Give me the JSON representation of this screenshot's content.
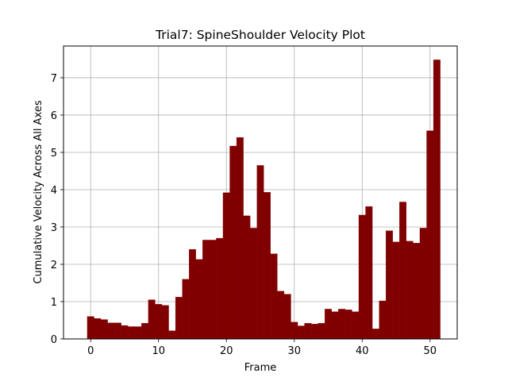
{
  "chart_data": {
    "type": "bar",
    "title": "Trial7: SpineShoulder Velocity Plot",
    "xlabel": "Frame",
    "ylabel": "Cumulative Velocity Across All Axes",
    "xlim": [
      -4,
      54
    ],
    "ylim": [
      0,
      7.85
    ],
    "xticks": [
      0,
      10,
      20,
      30,
      40,
      50
    ],
    "yticks": [
      0,
      1,
      2,
      3,
      4,
      5,
      6,
      7
    ],
    "grid": true,
    "bar_color": "#800000",
    "x": [
      0,
      1,
      2,
      3,
      4,
      5,
      6,
      7,
      8,
      9,
      10,
      11,
      12,
      13,
      14,
      15,
      16,
      17,
      18,
      19,
      20,
      21,
      22,
      23,
      24,
      25,
      26,
      27,
      28,
      29,
      30,
      31,
      32,
      33,
      34,
      35,
      36,
      37,
      38,
      39,
      40,
      41,
      42,
      43,
      44,
      45,
      46,
      47,
      48,
      49,
      50,
      51
    ],
    "values": [
      0.6,
      0.55,
      0.52,
      0.43,
      0.43,
      0.36,
      0.33,
      0.33,
      0.42,
      1.05,
      0.93,
      0.9,
      0.22,
      1.12,
      1.6,
      2.4,
      2.13,
      2.65,
      2.65,
      2.7,
      3.92,
      5.17,
      5.4,
      3.3,
      2.97,
      4.65,
      3.93,
      2.28,
      1.28,
      1.2,
      0.45,
      0.35,
      0.42,
      0.4,
      0.42,
      0.8,
      0.73,
      0.8,
      0.78,
      0.73,
      3.32,
      3.55,
      0.27,
      1.02,
      2.9,
      2.6,
      3.67,
      2.62,
      2.57,
      2.97,
      5.58,
      7.48
    ]
  }
}
